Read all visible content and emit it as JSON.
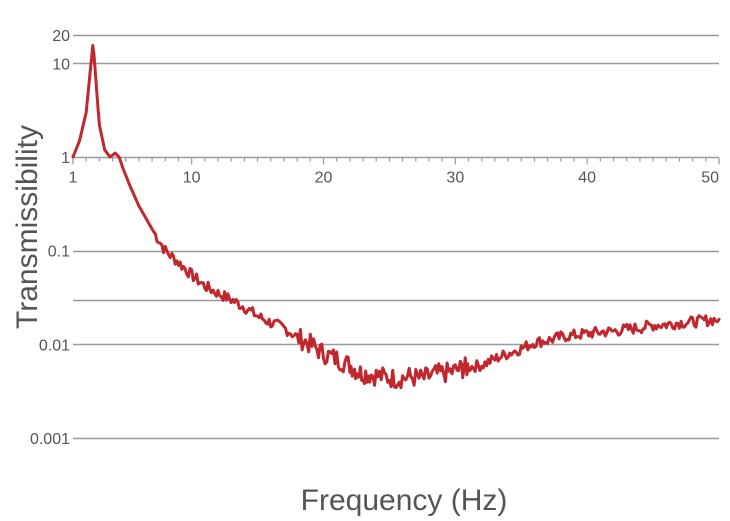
{
  "chart_data": {
    "type": "line",
    "title": "",
    "xlabel": "Frequency (Hz)",
    "ylabel": "Transmissibility",
    "y_scale": "log",
    "xlim": [
      1,
      50
    ],
    "ylim": [
      0.001,
      20
    ],
    "grid": "horizontal",
    "x_tick_labels": [
      "1",
      "10",
      "20",
      "30",
      "40",
      "50"
    ],
    "x_tick_values": [
      1,
      10,
      20,
      30,
      40,
      50
    ],
    "y_tick_labels": [
      "20",
      "10",
      "1",
      "0.1",
      "0.01",
      "0.001"
    ],
    "y_tick_values": [
      20,
      10,
      1,
      0.1,
      0.01,
      0.001
    ],
    "y_gridlines": [
      20,
      10,
      1,
      0.1,
      0.03,
      0.01,
      0.001
    ],
    "line_color": "#c1272d",
    "grid_color": "#9a9a9a",
    "series": [
      {
        "x": [
          1,
          1.5,
          2,
          2.3,
          2.5,
          2.6,
          2.8,
          3.0,
          3.4,
          3.8,
          4.2,
          4.5,
          4.8,
          5.3,
          6,
          7,
          8,
          9,
          10,
          11,
          12,
          13,
          14,
          15,
          16,
          17,
          18,
          19,
          20,
          21,
          22,
          22.7,
          23.5,
          24.5,
          25.5,
          26.5,
          27.5,
          28.5,
          29.5,
          30.5,
          31,
          32,
          33,
          34,
          35,
          36,
          37,
          38,
          39,
          40,
          41,
          42,
          43,
          44,
          45,
          46,
          47,
          48,
          49,
          50
        ],
        "y": [
          1,
          1.5,
          3,
          8,
          15.5,
          12,
          5,
          2.2,
          1.2,
          1,
          1.1,
          1,
          0.75,
          0.5,
          0.3,
          0.17,
          0.1,
          0.075,
          0.055,
          0.042,
          0.035,
          0.03,
          0.025,
          0.02,
          0.017,
          0.015,
          0.012,
          0.01,
          0.008,
          0.007,
          0.006,
          0.005,
          0.0048,
          0.0045,
          0.0043,
          0.0045,
          0.0043,
          0.0048,
          0.005,
          0.0055,
          0.0057,
          0.006,
          0.007,
          0.008,
          0.009,
          0.0105,
          0.011,
          0.012,
          0.0125,
          0.013,
          0.0135,
          0.0138,
          0.0145,
          0.015,
          0.016,
          0.0163,
          0.017,
          0.0173,
          0.018,
          0.0185
        ]
      }
    ]
  }
}
